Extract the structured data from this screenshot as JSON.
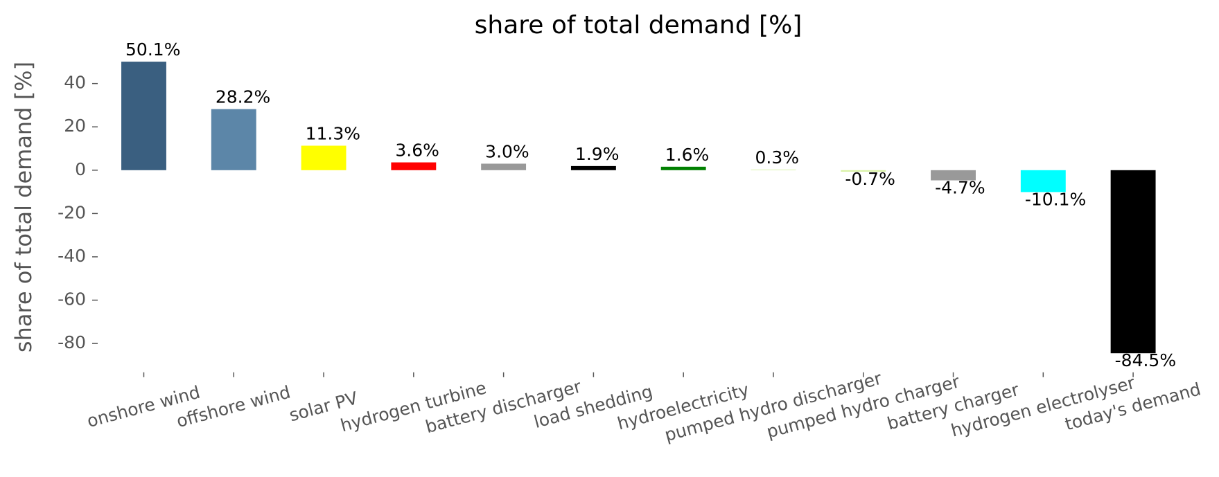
{
  "chart_data": {
    "type": "bar",
    "title": "share of total demand [%]",
    "y_label": "share of total demand [%]",
    "categories": [
      "onshore wind",
      "offshore wind",
      "solar PV",
      "hydrogen turbine",
      "battery discharger",
      "load shedding",
      "hydroelectricity",
      "pumped hydro discharger",
      "pumped hydro charger",
      "battery charger",
      "hydrogen electrolyser",
      "today's demand"
    ],
    "values": [
      50.1,
      28.2,
      11.3,
      3.6,
      3.0,
      1.9,
      1.6,
      0.3,
      -0.7,
      -4.7,
      -10.1,
      -84.5
    ],
    "value_labels": [
      "50.1%",
      "28.2%",
      "11.3%",
      "3.6%",
      "3.0%",
      "1.9%",
      "1.6%",
      "0.3%",
      "-0.7%",
      "-4.7%",
      "-10.1%",
      "-84.5%"
    ],
    "colors": [
      "#3a5f80",
      "#5c86a8",
      "#ffff00",
      "#ff0000",
      "#999999",
      "#000000",
      "#008000",
      "#d9f2a6",
      "#d9f2a6",
      "#999999",
      "#00ffff",
      "#000000"
    ],
    "ylim": [
      -93,
      56
    ],
    "yticks": [
      -80,
      -60,
      -40,
      -20,
      0,
      20,
      40
    ],
    "grid": false
  }
}
